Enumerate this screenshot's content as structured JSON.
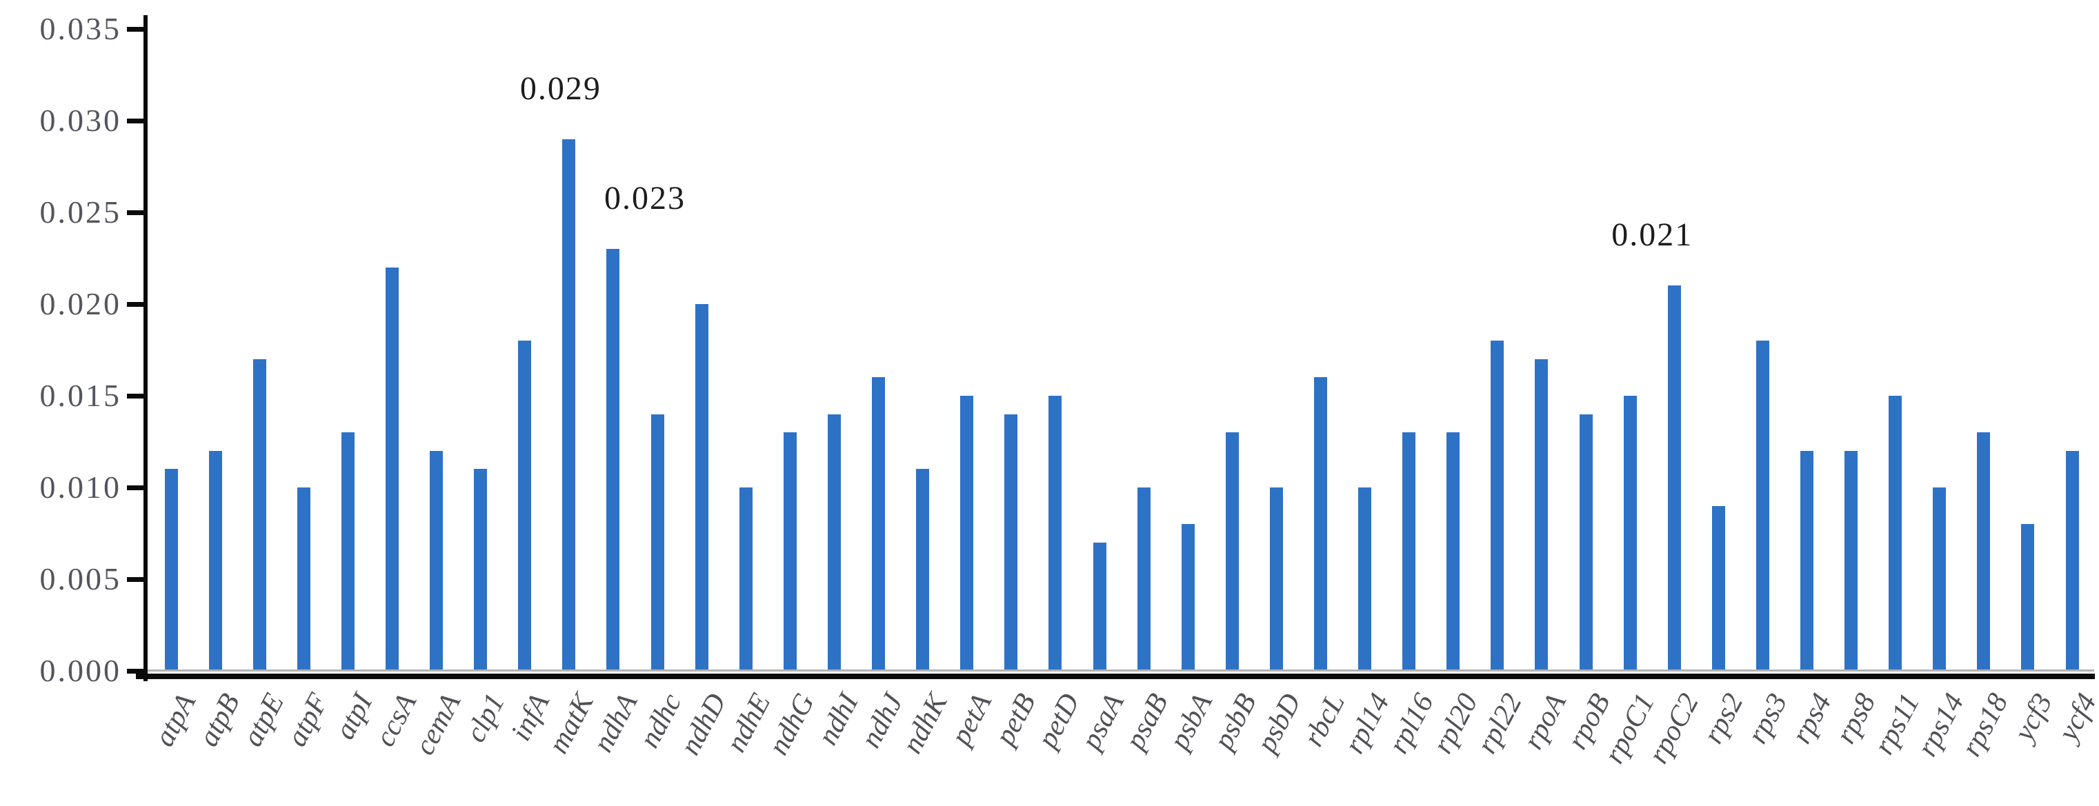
{
  "chart_data": {
    "type": "bar",
    "title": "",
    "xlabel": "",
    "ylabel": "",
    "ylim": [
      0,
      0.035
    ],
    "ytick_step": 0.005,
    "yticks": [
      "0.000",
      "0.005",
      "0.010",
      "0.015",
      "0.020",
      "0.025",
      "0.030",
      "0.035"
    ],
    "grid": false,
    "legend_position": "none",
    "bar_color": "#2e72c6",
    "axis_color": "#0b0b0b",
    "baseline_color": "#b3b3b3",
    "tick_label_color": "#54555e",
    "category_label_color": "#515055",
    "annotation_color": "#1c1c1c",
    "categories": [
      "atpA",
      "atpB",
      "atpE",
      "atpF",
      "atpI",
      "ccsA",
      "cemA",
      "clp1",
      "infA",
      "matK",
      "ndhA",
      "ndhc",
      "ndhD",
      "ndhE",
      "ndhG",
      "ndhI",
      "ndhJ",
      "ndhK",
      "petA",
      "petB",
      "petD",
      "psaA",
      "psaB",
      "psbA",
      "psbB",
      "psbD",
      "rbcL",
      "rpl14",
      "rpl16",
      "rpl20",
      "rpl22",
      "rpoA",
      "rpoB",
      "rpoC1",
      "rpoC2",
      "rps2",
      "rps3",
      "rps4",
      "rps8",
      "rps11",
      "rps14",
      "rps18",
      "ycf3",
      "ycf4"
    ],
    "values": [
      0.011,
      0.012,
      0.017,
      0.01,
      0.013,
      0.022,
      0.012,
      0.011,
      0.018,
      0.029,
      0.023,
      0.014,
      0.02,
      0.01,
      0.013,
      0.014,
      0.016,
      0.011,
      0.015,
      0.014,
      0.015,
      0.007,
      0.01,
      0.008,
      0.013,
      0.01,
      0.016,
      0.01,
      0.013,
      0.013,
      0.018,
      0.017,
      0.014,
      0.015,
      0.021,
      0.009,
      0.018,
      0.012,
      0.012,
      0.015,
      0.01,
      0.013,
      0.008,
      0.012
    ],
    "annotations": [
      {
        "category": "matK",
        "text": "0.029",
        "dx": -12
      },
      {
        "category": "ndhA",
        "text": "0.023",
        "dx": 46
      },
      {
        "category": "rpoC2",
        "text": "0.021",
        "dx": -32
      }
    ]
  }
}
